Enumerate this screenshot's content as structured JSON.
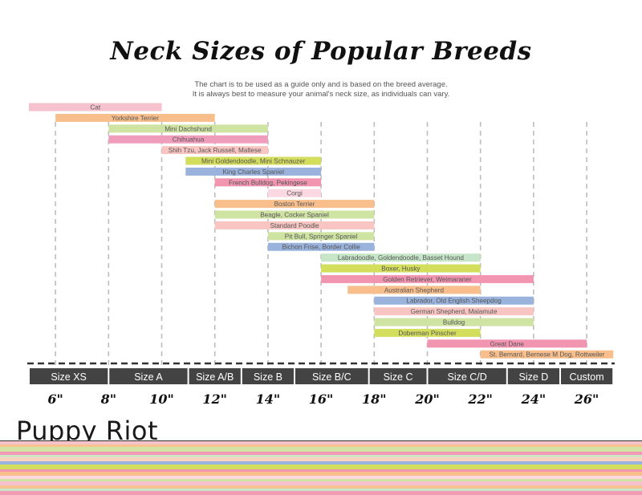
{
  "title": "Neck Sizes of Popular Breeds",
  "subtitle": [
    "The chart is to be used as a guide only and is based on the breed average.",
    "It is always best to measure your animal's neck size, as individuals can vary."
  ],
  "brand": "Puppy Riot",
  "chart_data": {
    "type": "range-bar",
    "title": "Neck Sizes of Popular Breeds",
    "x_unit": "inches",
    "xlim": [
      5,
      27
    ],
    "ticks": [
      6,
      8,
      10,
      12,
      14,
      16,
      18,
      20,
      22,
      24,
      26
    ],
    "tick_labels": [
      "6\"",
      "8\"",
      "10\"",
      "12\"",
      "14\"",
      "16\"",
      "18\"",
      "20\"",
      "22\"",
      "24\"",
      "26\""
    ],
    "grid": true,
    "sizes": [
      {
        "label": "Size XS",
        "from": 5,
        "to": 8
      },
      {
        "label": "Size A",
        "from": 8,
        "to": 11
      },
      {
        "label": "Size A/B",
        "from": 11,
        "to": 13
      },
      {
        "label": "Size B",
        "from": 13,
        "to": 15
      },
      {
        "label": "Size B/C",
        "from": 15,
        "to": 17.8
      },
      {
        "label": "Size C",
        "from": 17.8,
        "to": 20
      },
      {
        "label": "Size C/D",
        "from": 20,
        "to": 23
      },
      {
        "label": "Size D",
        "from": 23,
        "to": 25
      },
      {
        "label": "Custom",
        "from": 25,
        "to": 27
      }
    ],
    "breeds": [
      {
        "name": "Cat",
        "from": 5,
        "to": 10,
        "color": "#f5c2cd"
      },
      {
        "name": "Yorkshire Terrier",
        "from": 6,
        "to": 12,
        "color": "#f8bf8c"
      },
      {
        "name": "Mini Dachshund",
        "from": 8,
        "to": 14,
        "color": "#cfe3a3"
      },
      {
        "name": "Chihuahua",
        "from": 8,
        "to": 14,
        "color": "#f09dbb"
      },
      {
        "name": "Shih Tzu, Jack Russell, Maltese",
        "from": 10,
        "to": 14,
        "color": "#f8c5c2"
      },
      {
        "name": "Mini Goldendoodle, Mini Schnauzer",
        "from": 10.9,
        "to": 16,
        "color": "#d3de5c"
      },
      {
        "name": "King Charles Spaniel",
        "from": 10.9,
        "to": 16,
        "color": "#9ab3dd"
      },
      {
        "name": "French Bulldog, Pekingese",
        "from": 12,
        "to": 16,
        "color": "#f195b0"
      },
      {
        "name": "Corgi",
        "from": 14,
        "to": 16,
        "color": "#fbd8e2"
      },
      {
        "name": "Boston Terrier",
        "from": 12,
        "to": 18,
        "color": "#f8bf8c"
      },
      {
        "name": "Beagle, Cocker Spaniel",
        "from": 12,
        "to": 18,
        "color": "#cfe3a3"
      },
      {
        "name": "Standard Poodle",
        "from": 12,
        "to": 18,
        "color": "#f8c5c2"
      },
      {
        "name": "Pit Bull, Springer Spaniel",
        "from": 14,
        "to": 18,
        "color": "#cfe3a3"
      },
      {
        "name": "Bichon Frise, Border Collie",
        "from": 14,
        "to": 18,
        "color": "#9ab3dd"
      },
      {
        "name": "Labradoodle, Goldendoodle, Basset Hound",
        "from": 16,
        "to": 22,
        "color": "#c7e5c8"
      },
      {
        "name": "Boxer, Husky",
        "from": 16,
        "to": 22,
        "color": "#d3de5c"
      },
      {
        "name": "Golden Retriever, Weimaraner",
        "from": 16,
        "to": 24,
        "color": "#f195b0"
      },
      {
        "name": "Australian Shepherd",
        "from": 17,
        "to": 22,
        "color": "#f8bf8c"
      },
      {
        "name": "Labrador, Old English Sheepdog",
        "from": 18,
        "to": 24,
        "color": "#9ab3dd"
      },
      {
        "name": "German Shepherd, Malamute",
        "from": 18,
        "to": 24,
        "color": "#f8c5c2"
      },
      {
        "name": "Bulldog",
        "from": 18,
        "to": 24,
        "color": "#cfe3a3"
      },
      {
        "name": "Doberman Pinscher",
        "from": 18,
        "to": 22,
        "color": "#d3de5c"
      },
      {
        "name": "Great Dane",
        "from": 20,
        "to": 26,
        "color": "#f195b0"
      },
      {
        "name": "St. Bernard, Bernese M Dog, Rottweiler",
        "from": 22,
        "to": 27,
        "color": "#f8bf8c"
      }
    ]
  },
  "colors": {
    "size_bar": "#434343",
    "size_text": "#ffffff",
    "grid": "#bdbdbd",
    "stripes": [
      "#f7c4cc",
      "#f8c392",
      "#d3e3a4",
      "#f29bb6",
      "#cfe4c5",
      "#f9d2c0",
      "#9ab3dd",
      "#d3de5c",
      "#f195b0",
      "#f8bf8c",
      "#fbd8e2",
      "#cfe3a3",
      "#f5c2cd",
      "#f8c392",
      "#c7e5c8",
      "#f29bb6"
    ]
  }
}
